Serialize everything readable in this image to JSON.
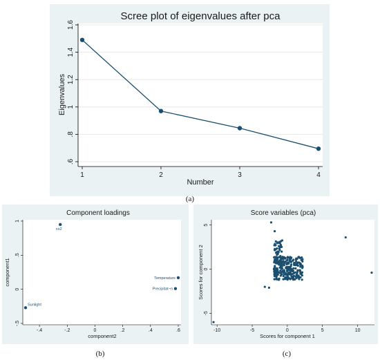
{
  "chart_data": [
    {
      "type": "line",
      "title": "Scree plot of eigenvalues after pca",
      "xlabel": "Number",
      "ylabel": "Eigenvalues",
      "x": [
        1,
        2,
        3,
        4
      ],
      "values": [
        1.49,
        0.97,
        0.845,
        0.695
      ],
      "xticks": [
        "1",
        "2",
        "3",
        "4"
      ],
      "yticks": [
        ".6",
        ".8",
        "1",
        "1.2",
        "1.4",
        "1.6"
      ],
      "xlim": [
        1,
        4
      ],
      "ylim": [
        0.6,
        1.6
      ],
      "grid": "horizontal",
      "caption": "(a)"
    },
    {
      "type": "scatter",
      "title": "Component loadings",
      "xlabel": "component2",
      "ylabel": "component1",
      "points": [
        {
          "label": "co2",
          "x": -0.25,
          "y": 0.95
        },
        {
          "label": "Temperature",
          "x": 0.6,
          "y": 0.17
        },
        {
          "label": "Precipitat~n",
          "x": 0.58,
          "y": 0.01
        },
        {
          "label": "Sunlight",
          "x": -0.5,
          "y": -0.27
        }
      ],
      "xticks": [
        "-.4",
        "-.2",
        "0",
        ".2",
        ".4",
        ".6"
      ],
      "yticks": [
        "-.5",
        "0",
        ".5",
        "1"
      ],
      "xlim": [
        -0.52,
        0.62
      ],
      "ylim": [
        -0.52,
        1.02
      ],
      "caption": "(b)"
    },
    {
      "type": "scatter",
      "title": "Score variables (pca)",
      "xlabel": "Scores for component 1",
      "ylabel": "Scores for component 2",
      "outliers": [
        {
          "x": -10.5,
          "y": -6.0
        },
        {
          "x": 8.3,
          "y": 3.6
        },
        {
          "x": 12.0,
          "y": -0.4
        },
        {
          "x": -3.2,
          "y": -2.0
        },
        {
          "x": -2.6,
          "y": -2.1
        },
        {
          "x": -2.3,
          "y": 5.3
        },
        {
          "x": -1.8,
          "y": 4.3
        }
      ],
      "cluster": {
        "x_range": [
          -2.2,
          2.3
        ],
        "y_range": [
          -1.6,
          3.3
        ],
        "count": 320
      },
      "xticks": [
        "-10",
        "-5",
        "0",
        "5",
        "10"
      ],
      "yticks": [
        "-5",
        "0",
        "5"
      ],
      "xlim": [
        -10.8,
        12.4
      ],
      "ylim": [
        -6.3,
        5.6
      ],
      "caption": "(c)"
    }
  ]
}
